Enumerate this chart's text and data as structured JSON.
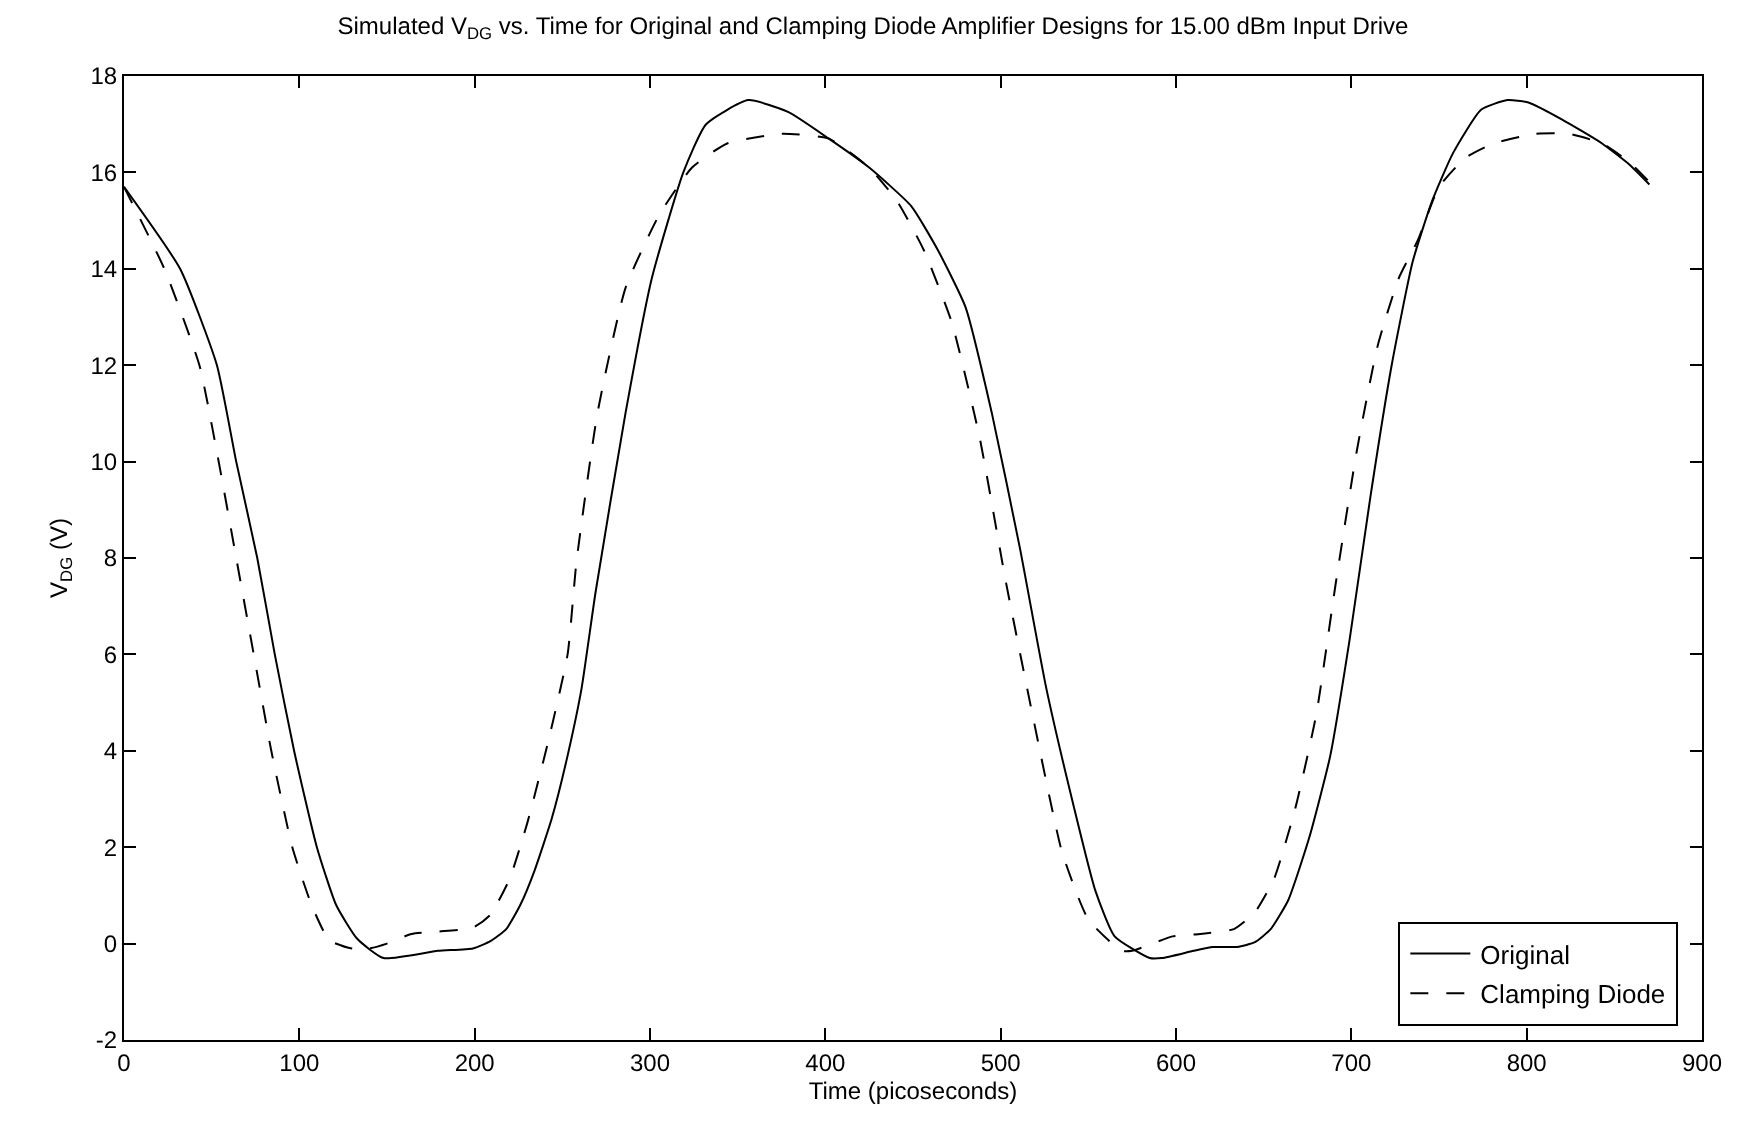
{
  "chart_data": {
    "type": "line",
    "title": "Simulated V$_{DG}$ vs. Time for Original and Clamping Diode Amplifier Designs for 15.00 dBm Input Drive",
    "xlabel": "Time (picoseconds)",
    "ylabel": "V$_{DG}$ (V)",
    "xlim": [
      0,
      900
    ],
    "ylim": [
      -2,
      18
    ],
    "xticks": [
      0,
      100,
      200,
      300,
      400,
      500,
      600,
      700,
      800,
      900
    ],
    "yticks": [
      -2,
      0,
      2,
      4,
      6,
      8,
      10,
      12,
      14,
      16,
      18
    ],
    "legend": "bottom right",
    "series": [
      {
        "name": "Original",
        "color": "#000000",
        "line_style": "solid",
        "x": [
          0,
          32,
          53,
          64,
          76,
          86,
          97,
          110,
          121,
          133,
          148,
          179,
          199,
          209,
          218,
          226,
          234,
          244,
          253,
          261,
          269,
          286,
          301,
          319,
          332,
          356,
          379,
          402,
          425,
          449,
          464,
          480,
          495,
          511,
          526,
          542,
          554,
          565,
          585,
          592,
          610,
          621,
          635,
          645,
          654,
          664,
          676,
          688,
          699,
          711,
          723,
          735,
          746,
          758,
          774,
          789,
          801,
          820,
          843,
          859,
          870
        ],
        "values": [
          15.7,
          14.0,
          12.0,
          10.0,
          8.0,
          6.0,
          4.0,
          2.0,
          0.8,
          0.1,
          -0.3,
          -0.15,
          -0.1,
          0.05,
          0.3,
          0.8,
          1.5,
          2.6,
          3.9,
          5.3,
          7.3,
          11.0,
          13.8,
          16.0,
          17.0,
          17.5,
          17.25,
          16.7,
          16.1,
          15.3,
          14.4,
          13.2,
          11.0,
          8.2,
          5.3,
          2.8,
          1.1,
          0.15,
          -0.3,
          -0.3,
          -0.15,
          -0.07,
          -0.07,
          0.03,
          0.3,
          0.9,
          2.2,
          3.9,
          6.3,
          9.3,
          12.0,
          14.15,
          15.4,
          16.4,
          17.3,
          17.5,
          17.45,
          17.1,
          16.6,
          16.15,
          15.75
        ]
      },
      {
        "name": "Clamping Diode",
        "color": "#000000",
        "line_style": "dashed",
        "x": [
          0,
          23,
          43,
          54,
          64,
          74,
          84,
          96,
          107,
          117,
          130,
          140,
          150,
          164,
          179,
          199,
          209,
          220,
          230,
          242,
          253,
          258,
          270,
          286,
          305,
          324,
          344,
          375,
          402,
          425,
          441,
          456,
          472,
          488,
          503,
          519,
          535,
          550,
          569,
          575,
          598,
          614,
          633,
          645,
          656,
          668,
          680,
          691,
          703,
          715,
          727,
          738,
          750,
          765,
          781,
          805,
          824,
          843,
          859,
          870
        ],
        "values": [
          15.7,
          14.0,
          12.0,
          10.0,
          8.0,
          6.0,
          4.0,
          2.0,
          0.8,
          0.07,
          -0.1,
          -0.1,
          0.0,
          0.2,
          0.25,
          0.33,
          0.6,
          1.35,
          2.5,
          4.2,
          6.0,
          7.9,
          11.0,
          13.6,
          15.1,
          16.1,
          16.6,
          16.8,
          16.7,
          16.1,
          15.4,
          14.4,
          12.9,
          10.5,
          7.5,
          4.6,
          1.9,
          0.5,
          -0.15,
          -0.15,
          0.15,
          0.2,
          0.3,
          0.65,
          1.35,
          2.8,
          4.75,
          7.45,
          10.2,
          12.4,
          13.8,
          14.6,
          15.7,
          16.3,
          16.6,
          16.8,
          16.8,
          16.6,
          16.2,
          15.8
        ]
      }
    ]
  }
}
